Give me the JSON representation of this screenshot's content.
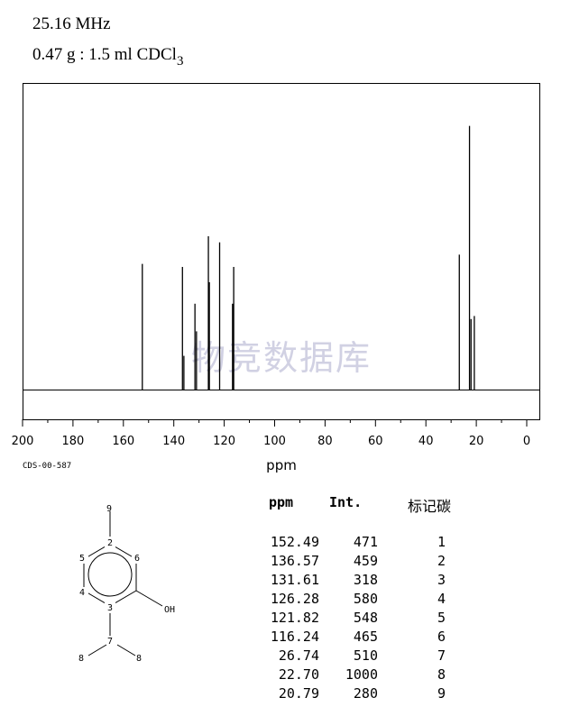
{
  "header": {
    "frequency": "25.16 MHz",
    "sample_main": "0.47 g : 1.5 ml CDCl",
    "sample_sub": "3"
  },
  "watermark": "物竞数据库",
  "code": "CDS-00-587",
  "chart_data": {
    "type": "line",
    "title": "",
    "xlabel": "ppm",
    "ylabel": "",
    "xlim": [
      200,
      0
    ],
    "x_ticks": [
      200,
      180,
      160,
      140,
      120,
      100,
      80,
      60,
      40,
      20,
      0
    ],
    "x_tick_labels": [
      "200",
      "180",
      "160",
      "140",
      "120",
      "100",
      "80",
      "60",
      "40",
      "20",
      "0"
    ],
    "peaks": [
      {
        "ppm": 152.49,
        "height": 0.41
      },
      {
        "ppm": 136.57,
        "height": 0.4
      },
      {
        "ppm": 136.0,
        "height": 0.11
      },
      {
        "ppm": 131.61,
        "height": 0.28
      },
      {
        "ppm": 131.0,
        "height": 0.19
      },
      {
        "ppm": 126.28,
        "height": 0.5
      },
      {
        "ppm": 125.9,
        "height": 0.35
      },
      {
        "ppm": 121.82,
        "height": 0.48
      },
      {
        "ppm": 116.24,
        "height": 0.4
      },
      {
        "ppm": 116.7,
        "height": 0.28
      },
      {
        "ppm": 26.74,
        "height": 0.44
      },
      {
        "ppm": 22.7,
        "height": 0.86
      },
      {
        "ppm": 22.1,
        "height": 0.23
      },
      {
        "ppm": 20.79,
        "height": 0.24
      }
    ],
    "table": {
      "columns": [
        "ppm",
        "Int.",
        "标记碳"
      ],
      "rows": [
        [
          "152.49",
          "471",
          "1"
        ],
        [
          "136.57",
          "459",
          "2"
        ],
        [
          "131.61",
          "318",
          "3"
        ],
        [
          "126.28",
          "580",
          "4"
        ],
        [
          "121.82",
          "548",
          "5"
        ],
        [
          "116.24",
          "465",
          "6"
        ],
        [
          "26.74",
          "510",
          "7"
        ],
        [
          "22.70",
          "1000",
          "8"
        ],
        [
          "20.79",
          "280",
          "9"
        ]
      ]
    }
  },
  "molecule": {
    "labels": [
      "9",
      "2",
      "5",
      "6",
      "4",
      "3",
      "OH",
      "7",
      "8",
      "8"
    ]
  }
}
